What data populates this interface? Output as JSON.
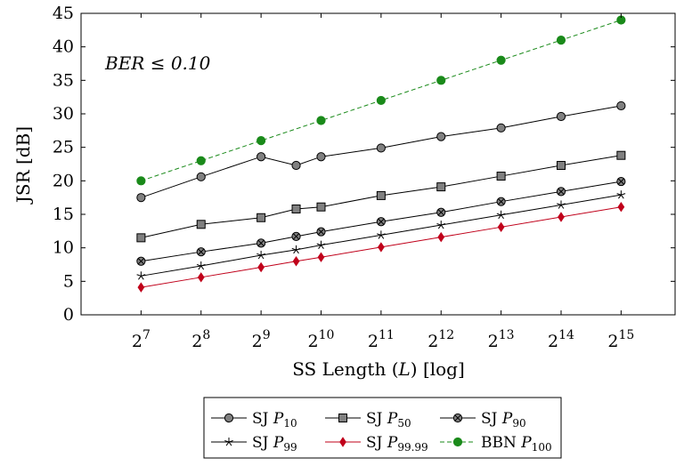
{
  "chart_data": {
    "type": "line",
    "title": "",
    "xlabel": "SS Length (L) [log]",
    "ylabel": "JSR [dB]",
    "x_scale": "log2",
    "xlim": [
      6,
      15.9
    ],
    "ylim": [
      0,
      45
    ],
    "y_ticks": [
      0,
      5,
      10,
      15,
      20,
      25,
      30,
      35,
      40,
      45
    ],
    "x_tick_exponents": [
      7,
      8,
      9,
      10,
      11,
      12,
      13,
      14,
      15
    ],
    "x_tick_base": "2",
    "annotation": "BER ≤ 0.10",
    "grid": false,
    "legend_position": "bottom-center",
    "series": [
      {
        "name": "SJ P10",
        "label_main": "SJ ",
        "label_var": "P",
        "label_sub": "10",
        "color": "#000000",
        "marker": "circle",
        "marker_fill": "#808080",
        "dashed": false,
        "x_exp": [
          7,
          8,
          9,
          9.585,
          10,
          11,
          12,
          13,
          14,
          15
        ],
        "values": [
          17.5,
          20.6,
          23.6,
          22.3,
          23.6,
          24.9,
          26.6,
          27.9,
          29.6,
          31.2
        ]
      },
      {
        "name": "SJ P50",
        "label_main": "SJ ",
        "label_var": "P",
        "label_sub": "50",
        "color": "#000000",
        "marker": "square",
        "marker_fill": "#808080",
        "dashed": false,
        "x_exp": [
          7,
          8,
          9,
          9.585,
          10,
          11,
          12,
          13,
          14,
          15
        ],
        "values": [
          11.5,
          13.5,
          14.5,
          15.8,
          16.1,
          17.8,
          19.1,
          20.7,
          22.3,
          23.8
        ]
      },
      {
        "name": "SJ P90",
        "label_main": "SJ ",
        "label_var": "P",
        "label_sub": "90",
        "color": "#000000",
        "marker": "otimes",
        "marker_fill": "#808080",
        "dashed": false,
        "x_exp": [
          7,
          8,
          9,
          9.585,
          10,
          11,
          12,
          13,
          14,
          15
        ],
        "values": [
          8.0,
          9.4,
          10.7,
          11.7,
          12.4,
          13.9,
          15.3,
          16.9,
          18.4,
          19.9
        ]
      },
      {
        "name": "SJ P99",
        "label_main": "SJ ",
        "label_var": "P",
        "label_sub": "99",
        "color": "#000000",
        "marker": "star",
        "marker_fill": "#000000",
        "dashed": false,
        "x_exp": [
          7,
          8,
          9,
          9.585,
          10,
          11,
          12,
          13,
          14,
          15
        ],
        "values": [
          5.8,
          7.3,
          8.9,
          9.7,
          10.4,
          11.9,
          13.4,
          14.9,
          16.4,
          17.9
        ]
      },
      {
        "name": "SJ P99.99",
        "label_main": "SJ ",
        "label_var": "P",
        "label_sub": "99.99",
        "color": "#c0001a",
        "marker": "diamond",
        "marker_fill": "#c0001a",
        "dashed": false,
        "x_exp": [
          7,
          8,
          9,
          9.585,
          10,
          11,
          12,
          13,
          14,
          15
        ],
        "values": [
          4.1,
          5.6,
          7.1,
          8.0,
          8.6,
          10.1,
          11.6,
          13.1,
          14.6,
          16.1
        ]
      },
      {
        "name": "BBN P100",
        "label_main": "BBN ",
        "label_var": "P",
        "label_sub": "100",
        "color": "#1a8a1a",
        "marker": "circle",
        "marker_fill": "#1a8a1a",
        "dashed": true,
        "x_exp": [
          7,
          8,
          9,
          10,
          11,
          12,
          13,
          14,
          15
        ],
        "values": [
          20,
          23,
          26,
          29,
          32,
          35,
          38,
          41,
          44
        ]
      }
    ]
  }
}
